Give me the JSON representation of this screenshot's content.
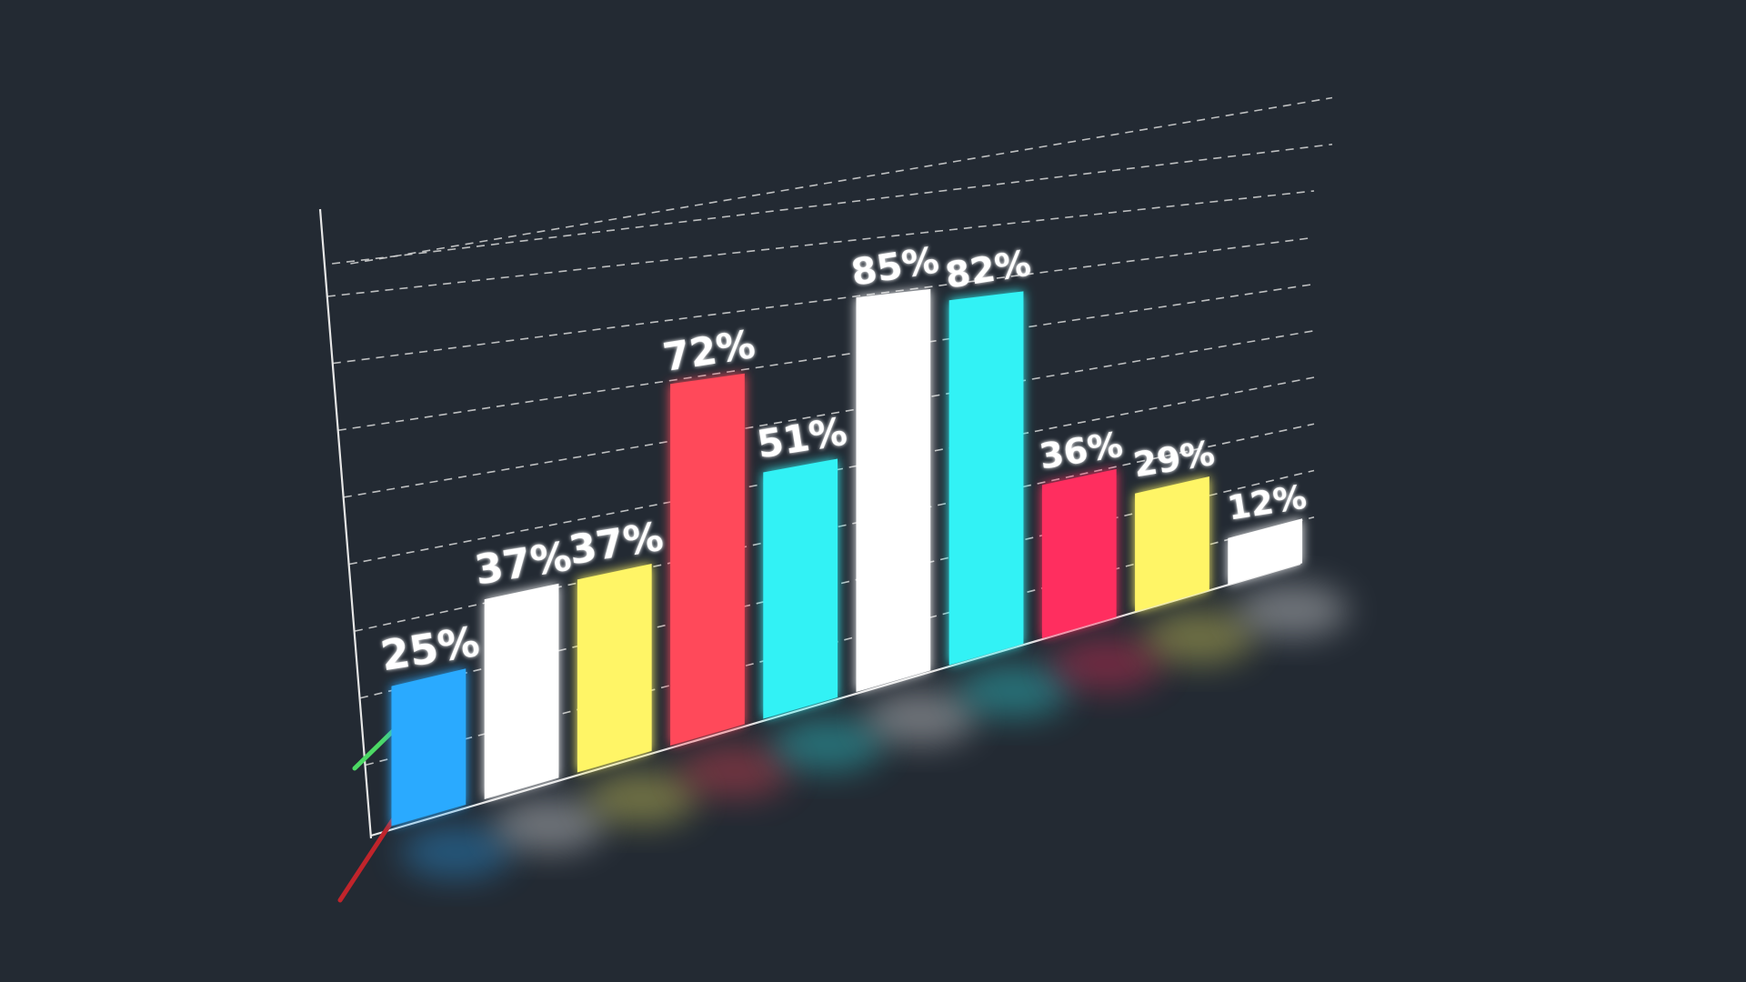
{
  "chart_data": {
    "type": "bar",
    "categories": [
      "",
      "",
      "",
      "",
      "",
      "",
      "",
      "",
      "",
      ""
    ],
    "values": [
      25,
      37,
      37,
      72,
      51,
      85,
      82,
      36,
      29,
      12
    ],
    "value_labels": [
      "25%",
      "37%",
      "37%",
      "72%",
      "51%",
      "85%",
      "82%",
      "36%",
      "29%",
      "12%"
    ],
    "colors": [
      "#29aaff",
      "#ffffff",
      "#fff566",
      "#ff4a5a",
      "#33f2f5",
      "#ffffff",
      "#33f2f5",
      "#ff2d5f",
      "#fff566",
      "#ffffff"
    ],
    "title": "",
    "xlabel": "",
    "ylabel": "",
    "ylim": [
      0,
      100
    ],
    "grid": true,
    "grid_style": "dashed",
    "legend": "none",
    "perspective": "3d-tilted"
  },
  "theme": {
    "background": "#232a33",
    "axis_color": "#e6e6e6",
    "grid_color": "#d9d9d9",
    "axis_green": "#4cd964",
    "axis_red": "#c0242b"
  }
}
